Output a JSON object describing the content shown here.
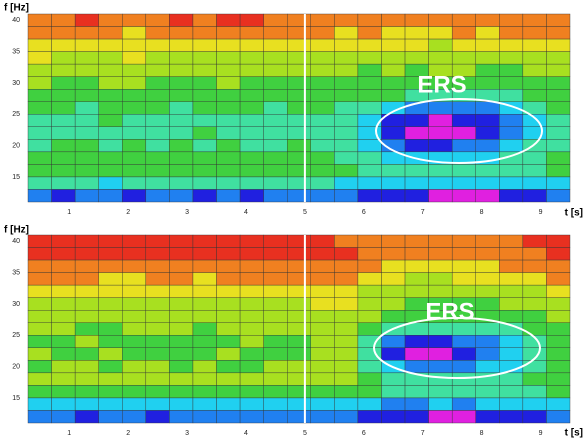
{
  "chart_data": [
    {
      "type": "heatmap",
      "y_label": "f [Hz]",
      "x_label": "t [s]",
      "annotation": "ERS",
      "xlim": [
        0.3,
        9.5
      ],
      "ylim": [
        11,
        41
      ],
      "xticks": [
        1,
        2,
        3,
        4,
        5,
        6,
        7,
        8,
        9
      ],
      "yticks": [
        15,
        20,
        25,
        30,
        35,
        40
      ],
      "vline": 5,
      "colorscale": [
        "#e020e0",
        "#2020e0",
        "#2080f0",
        "#20d0f0",
        "#40e0a0",
        "#40d040",
        "#a8e020",
        "#e8e020",
        "#f08020",
        "#e83020"
      ],
      "z": [
        [
          8,
          8,
          9,
          8,
          8,
          8,
          9,
          8,
          9,
          9,
          8,
          8,
          8,
          8,
          8,
          8,
          8,
          8,
          8,
          8,
          8,
          8,
          8
        ],
        [
          8,
          8,
          8,
          8,
          7,
          8,
          8,
          8,
          8,
          8,
          8,
          8,
          8,
          7,
          8,
          7,
          7,
          7,
          8,
          7,
          8,
          8,
          8
        ],
        [
          7,
          7,
          7,
          7,
          7,
          7,
          7,
          7,
          7,
          7,
          7,
          7,
          7,
          7,
          7,
          7,
          7,
          6,
          7,
          7,
          7,
          7,
          7
        ],
        [
          7,
          6,
          6,
          6,
          7,
          6,
          6,
          6,
          6,
          6,
          6,
          6,
          6,
          6,
          6,
          6,
          6,
          6,
          6,
          6,
          6,
          6,
          6
        ],
        [
          6,
          6,
          6,
          6,
          6,
          6,
          6,
          6,
          6,
          6,
          6,
          6,
          6,
          6,
          5,
          6,
          5,
          6,
          6,
          5,
          5,
          6,
          6
        ],
        [
          6,
          5,
          5,
          6,
          6,
          5,
          5,
          5,
          6,
          5,
          5,
          5,
          5,
          5,
          5,
          5,
          5,
          5,
          5,
          5,
          5,
          5,
          5
        ],
        [
          5,
          5,
          5,
          5,
          5,
          5,
          5,
          5,
          5,
          5,
          5,
          5,
          5,
          5,
          5,
          5,
          4,
          4,
          4,
          4,
          4,
          5,
          5
        ],
        [
          5,
          5,
          4,
          5,
          5,
          5,
          4,
          5,
          5,
          5,
          4,
          5,
          5,
          4,
          4,
          3,
          2,
          2,
          2,
          2,
          3,
          4,
          5
        ],
        [
          4,
          4,
          4,
          5,
          4,
          4,
          4,
          4,
          4,
          4,
          4,
          4,
          4,
          4,
          3,
          1,
          1,
          0,
          1,
          1,
          2,
          3,
          4
        ],
        [
          4,
          4,
          4,
          4,
          4,
          4,
          4,
          5,
          4,
          4,
          4,
          4,
          4,
          4,
          3,
          1,
          0,
          0,
          0,
          1,
          2,
          3,
          4
        ],
        [
          4,
          5,
          5,
          4,
          5,
          4,
          5,
          4,
          5,
          4,
          4,
          5,
          4,
          4,
          3,
          2,
          1,
          1,
          2,
          2,
          3,
          4,
          4
        ],
        [
          5,
          5,
          5,
          5,
          5,
          5,
          5,
          5,
          5,
          5,
          5,
          5,
          5,
          4,
          4,
          3,
          3,
          3,
          3,
          3,
          4,
          4,
          5
        ],
        [
          5,
          5,
          5,
          5,
          5,
          5,
          5,
          5,
          5,
          5,
          5,
          5,
          5,
          5,
          4,
          4,
          4,
          4,
          4,
          4,
          4,
          4,
          5
        ],
        [
          4,
          4,
          4,
          3,
          4,
          4,
          4,
          4,
          4,
          4,
          4,
          4,
          4,
          3,
          3,
          3,
          3,
          3,
          3,
          3,
          3,
          3,
          3
        ],
        [
          2,
          1,
          2,
          2,
          1,
          2,
          2,
          1,
          2,
          1,
          2,
          2,
          2,
          2,
          1,
          1,
          1,
          0,
          0,
          0,
          1,
          1,
          2
        ]
      ]
    },
    {
      "type": "heatmap",
      "y_label": "f [Hz]",
      "x_label": "t [s]",
      "annotation": "ERS",
      "xlim": [
        0.3,
        9.5
      ],
      "ylim": [
        11,
        41
      ],
      "xticks": [
        1,
        2,
        3,
        4,
        5,
        6,
        7,
        8,
        9
      ],
      "yticks": [
        15,
        20,
        25,
        30,
        35,
        40
      ],
      "vline": 5,
      "colorscale": [
        "#e020e0",
        "#2020e0",
        "#2080f0",
        "#20d0f0",
        "#40e0a0",
        "#40d040",
        "#a8e020",
        "#e8e020",
        "#f08020",
        "#e83020"
      ],
      "z": [
        [
          9,
          9,
          9,
          9,
          9,
          9,
          9,
          9,
          9,
          9,
          9,
          9,
          9,
          8,
          8,
          8,
          8,
          8,
          8,
          8,
          8,
          9,
          9
        ],
        [
          9,
          9,
          9,
          9,
          9,
          9,
          9,
          9,
          9,
          9,
          9,
          9,
          9,
          9,
          8,
          8,
          8,
          8,
          8,
          8,
          8,
          8,
          9
        ],
        [
          8,
          8,
          8,
          8,
          8,
          8,
          8,
          8,
          8,
          8,
          8,
          8,
          8,
          8,
          8,
          7,
          7,
          7,
          7,
          7,
          8,
          8,
          8
        ],
        [
          8,
          8,
          8,
          7,
          7,
          8,
          8,
          7,
          8,
          8,
          8,
          8,
          8,
          8,
          7,
          7,
          6,
          6,
          7,
          7,
          7,
          7,
          8
        ],
        [
          7,
          7,
          7,
          7,
          7,
          7,
          7,
          7,
          7,
          7,
          7,
          7,
          7,
          7,
          6,
          6,
          6,
          6,
          6,
          6,
          6,
          6,
          7
        ],
        [
          6,
          6,
          6,
          6,
          6,
          6,
          6,
          6,
          6,
          6,
          6,
          6,
          7,
          7,
          6,
          6,
          5,
          5,
          5,
          5,
          6,
          6,
          6
        ],
        [
          6,
          6,
          6,
          6,
          6,
          6,
          6,
          6,
          6,
          6,
          6,
          6,
          6,
          6,
          6,
          5,
          5,
          5,
          5,
          5,
          5,
          5,
          6
        ],
        [
          6,
          6,
          5,
          5,
          6,
          6,
          6,
          5,
          6,
          6,
          6,
          6,
          6,
          6,
          5,
          4,
          4,
          4,
          4,
          4,
          4,
          5,
          5
        ],
        [
          5,
          5,
          6,
          5,
          5,
          5,
          5,
          5,
          5,
          6,
          5,
          5,
          6,
          6,
          4,
          2,
          1,
          1,
          2,
          2,
          3,
          4,
          5
        ],
        [
          6,
          5,
          5,
          6,
          5,
          5,
          5,
          5,
          6,
          5,
          5,
          5,
          6,
          6,
          4,
          1,
          0,
          0,
          1,
          2,
          3,
          4,
          5
        ],
        [
          5,
          6,
          6,
          5,
          6,
          6,
          5,
          6,
          5,
          5,
          6,
          6,
          6,
          6,
          4,
          3,
          2,
          2,
          2,
          3,
          3,
          4,
          5
        ],
        [
          6,
          6,
          6,
          6,
          6,
          6,
          6,
          6,
          6,
          6,
          6,
          6,
          6,
          6,
          5,
          4,
          4,
          4,
          4,
          4,
          4,
          5,
          5
        ],
        [
          5,
          5,
          5,
          5,
          5,
          5,
          5,
          5,
          5,
          5,
          5,
          5,
          5,
          5,
          5,
          4,
          4,
          4,
          4,
          4,
          4,
          4,
          5
        ],
        [
          3,
          3,
          3,
          3,
          3,
          3,
          3,
          3,
          3,
          3,
          3,
          3,
          3,
          3,
          3,
          2,
          2,
          3,
          2,
          3,
          3,
          3,
          3
        ],
        [
          2,
          2,
          1,
          2,
          2,
          1,
          2,
          2,
          2,
          2,
          2,
          2,
          2,
          2,
          1,
          1,
          1,
          0,
          0,
          1,
          1,
          1,
          2
        ]
      ]
    }
  ]
}
